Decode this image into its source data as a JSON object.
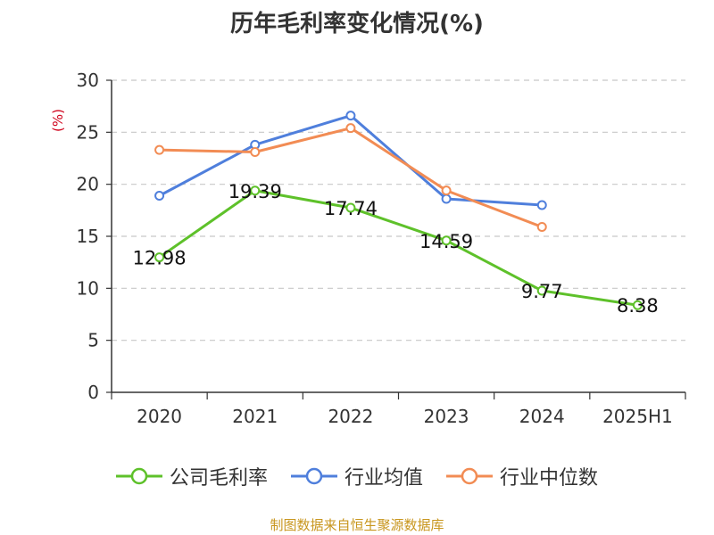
{
  "chart_data": {
    "type": "line",
    "title": "历年毛利率变化情况(%)",
    "ylabel": "(%)",
    "categories": [
      "2020",
      "2021",
      "2022",
      "2023",
      "2024",
      "2025H1"
    ],
    "ylim": [
      0,
      30
    ],
    "yticks": [
      0,
      5,
      10,
      15,
      20,
      25,
      30
    ],
    "grid": true,
    "legend_position": "bottom",
    "series": [
      {
        "name": "公司毛利率",
        "color": "#5ec12a",
        "values": [
          12.98,
          19.39,
          17.74,
          14.59,
          9.77,
          8.38
        ],
        "labels": [
          "12.98",
          "19.39",
          "17.74",
          "14.59",
          "9.77",
          "8.38"
        ]
      },
      {
        "name": "行业均值",
        "color": "#4f7fdc",
        "values": [
          18.9,
          23.8,
          26.6,
          18.6,
          18.0,
          null
        ]
      },
      {
        "name": "行业中位数",
        "color": "#f28c54",
        "values": [
          23.3,
          23.1,
          25.4,
          19.4,
          15.9,
          null
        ]
      }
    ]
  },
  "source_note": "制图数据来自恒生聚源数据库"
}
